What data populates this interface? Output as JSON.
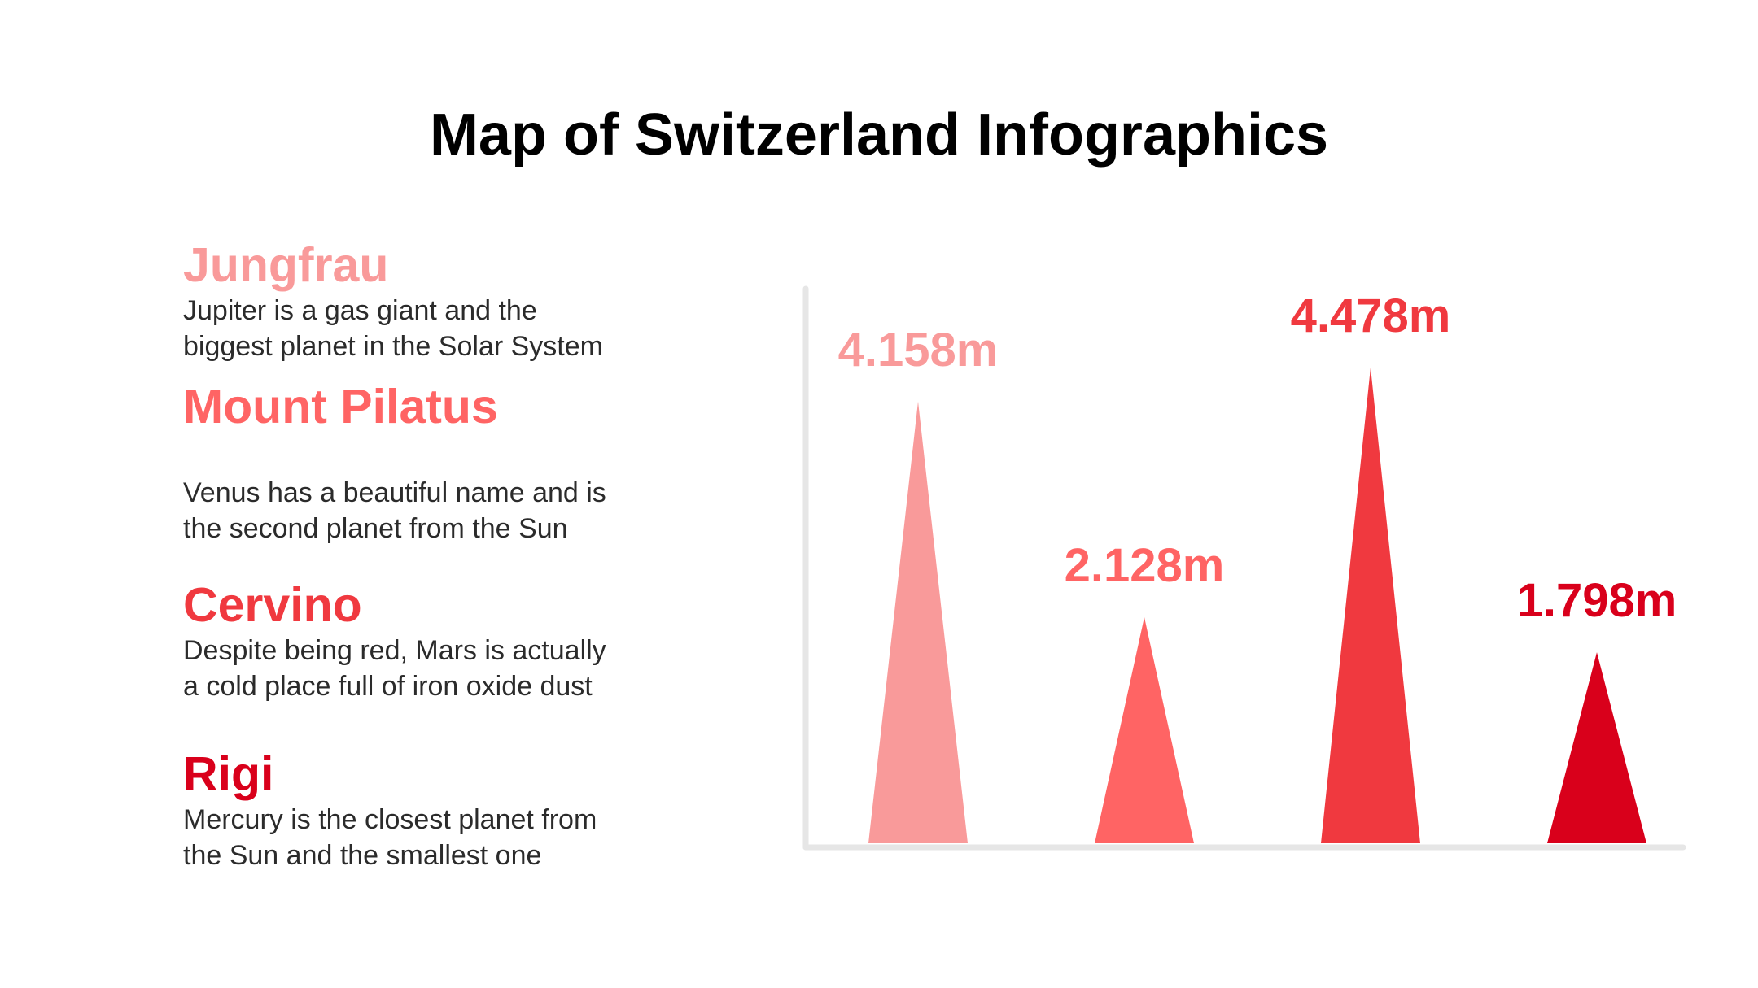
{
  "title": "Map of Switzerland Infographics",
  "colors": {
    "jungfrau": "#F99A9A",
    "pilatus": "#FF6464",
    "cervino": "#F0393F",
    "rigi": "#D9001B",
    "axis": "#E6E6E6",
    "text": "#2b2b2b"
  },
  "entries": [
    {
      "title": "Jungfrau",
      "desc_line1": "Jupiter is a gas giant and the",
      "desc_line2": "biggest planet in the Solar System"
    },
    {
      "title": "Mount Pilatus",
      "desc_line1": "Venus has a beautiful name and is",
      "desc_line2": "the second planet from the Sun"
    },
    {
      "title": "Cervino",
      "desc_line1": "Despite being red, Mars is actually",
      "desc_line2": "a cold place full of iron oxide dust"
    },
    {
      "title": "Rigi",
      "desc_line1": "Mercury is the closest planet from",
      "desc_line2": "the Sun and the smallest one"
    }
  ],
  "chart_data": {
    "type": "bar",
    "mark": "triangle",
    "title": "",
    "xlabel": "",
    "ylabel": "",
    "grid": false,
    "categories": [
      "Jungfrau",
      "Mount Pilatus",
      "Cervino",
      "Rigi"
    ],
    "values": [
      4158,
      2128,
      4478,
      1798
    ],
    "data_labels": [
      "4.158m",
      "2.128m",
      "4.478m",
      "1.798m"
    ],
    "colors": [
      "#F99A9A",
      "#FF6464",
      "#F0393F",
      "#D9001B"
    ]
  }
}
